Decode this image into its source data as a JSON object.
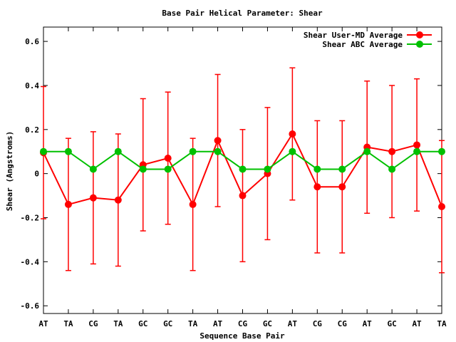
{
  "chart_data": {
    "type": "line",
    "title": "Base Pair Helical Parameter: Shear",
    "xlabel": "Sequence Base Pair",
    "ylabel": "Shear (Angstroms)",
    "categories": [
      "AT",
      "TA",
      "CG",
      "TA",
      "GC",
      "GC",
      "TA",
      "AT",
      "CG",
      "GC",
      "AT",
      "CG",
      "CG",
      "AT",
      "GC",
      "AT",
      "TA"
    ],
    "ylim": [
      -0.635,
      0.665
    ],
    "yticks": [
      -0.6,
      -0.4,
      -0.2,
      0,
      0.2,
      0.4,
      0.6
    ],
    "ytick_labels": [
      "-0.6",
      "-0.4",
      "-0.2",
      "0",
      "0.2",
      "0.4",
      "0.6"
    ],
    "legend_position": "top-right",
    "grid": false,
    "series": [
      {
        "name": "Shear User-MD Average",
        "color": "#ff0000",
        "values": [
          0.095,
          -0.14,
          -0.11,
          -0.12,
          0.04,
          0.07,
          -0.14,
          0.15,
          -0.1,
          0.0,
          0.18,
          -0.06,
          -0.06,
          0.12,
          0.1,
          0.13,
          -0.15
        ],
        "errors": [
          0.3,
          0.3,
          0.3,
          0.3,
          0.3,
          0.3,
          0.3,
          0.3,
          0.3,
          0.3,
          0.3,
          0.3,
          0.3,
          0.3,
          0.3,
          0.3,
          0.3
        ]
      },
      {
        "name": "Shear ABC Average",
        "color": "#00c000",
        "values": [
          0.1,
          0.1,
          0.02,
          0.1,
          0.02,
          0.02,
          0.1,
          0.1,
          0.02,
          0.02,
          0.1,
          0.02,
          0.02,
          0.1,
          0.02,
          0.1,
          0.1
        ]
      }
    ]
  }
}
